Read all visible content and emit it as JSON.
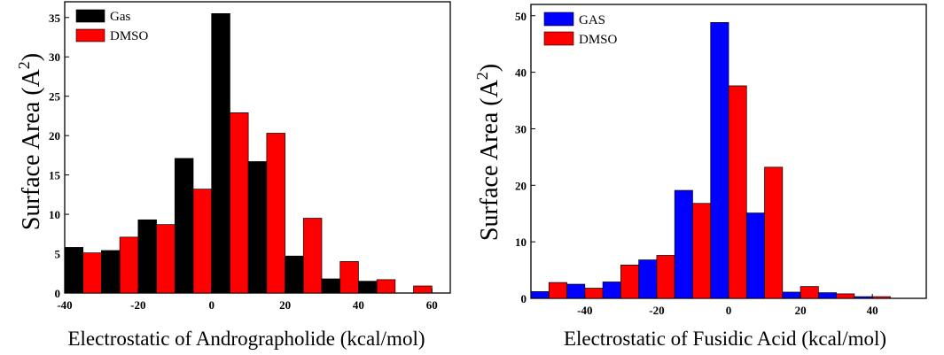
{
  "chart_data": [
    {
      "type": "bar",
      "title": "",
      "xlabel": "Electrostatic of Andrographolide (kcal/mol)",
      "ylabel": "Surface Area (A",
      "ylabel_superscript": "2",
      "ylabel_close": ")",
      "xlim": [
        -40,
        65
      ],
      "ylim": [
        0,
        37
      ],
      "xticks": [
        -40,
        -20,
        0,
        20,
        40,
        60
      ],
      "yticks": [
        0,
        5,
        10,
        15,
        20,
        25,
        30,
        35
      ],
      "bin_centers": [
        -35,
        -25,
        -15,
        -5,
        5,
        15,
        25,
        35,
        45,
        55
      ],
      "bin_width": 10,
      "legend_position": "top-left",
      "series": [
        {
          "name": "Gas",
          "color": "#000000",
          "values": [
            5.8,
            5.4,
            9.3,
            17.1,
            35.5,
            16.7,
            4.7,
            1.8,
            1.5,
            0
          ]
        },
        {
          "name": "DMSO",
          "color": "#ff0000",
          "values": [
            5.1,
            7.1,
            8.7,
            13.2,
            22.9,
            20.3,
            9.5,
            4.0,
            1.7,
            0.9
          ]
        }
      ]
    },
    {
      "type": "bar",
      "title": "",
      "xlabel": "Electrostatic of  Fusidic Acid (kcal/mol)",
      "ylabel": "Surface Area (A",
      "ylabel_superscript": "2",
      "ylabel_close": ")",
      "xlim": [
        -55,
        55
      ],
      "ylim": [
        0,
        52
      ],
      "xticks": [
        -40,
        -20,
        0,
        20,
        40
      ],
      "yticks": [
        0,
        10,
        20,
        30,
        40,
        50
      ],
      "bin_centers": [
        -50,
        -40,
        -30,
        -20,
        -10,
        0,
        10,
        20,
        30,
        40,
        50
      ],
      "bin_width": 10,
      "legend_position": "top-left",
      "series": [
        {
          "name": "GAS",
          "color": "#0000ff",
          "values": [
            1.2,
            2.5,
            2.9,
            6.8,
            19.1,
            48.8,
            15.1,
            1.1,
            1.0,
            0.3,
            0
          ]
        },
        {
          "name": "DMSO",
          "color": "#ff0000",
          "values": [
            2.8,
            1.8,
            5.9,
            7.6,
            16.8,
            37.6,
            23.2,
            2.1,
            0.8,
            0.3,
            0
          ]
        }
      ]
    }
  ]
}
